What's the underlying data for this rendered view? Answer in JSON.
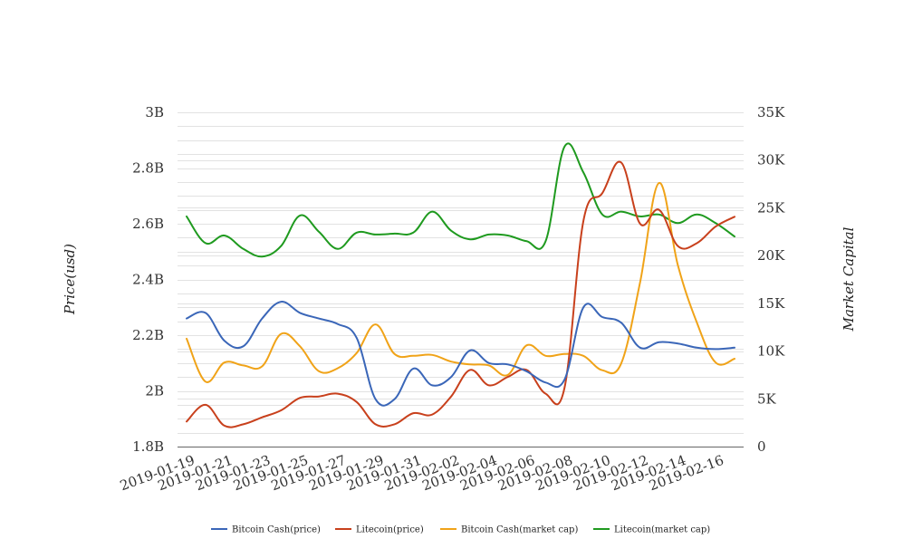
{
  "chart_data": {
    "type": "line",
    "title": "",
    "xlabel": "",
    "ylabel_left": "Price(usd)",
    "ylabel_right": "Market Capital",
    "x": [
      "2019-01-19",
      "2019-01-20",
      "2019-01-21",
      "2019-01-22",
      "2019-01-23",
      "2019-01-24",
      "2019-01-25",
      "2019-01-26",
      "2019-01-27",
      "2019-01-28",
      "2019-01-29",
      "2019-01-30",
      "2019-01-31",
      "2019-02-01",
      "2019-02-02",
      "2019-02-03",
      "2019-02-04",
      "2019-02-05",
      "2019-02-06",
      "2019-02-07",
      "2019-02-08",
      "2019-02-09",
      "2019-02-10",
      "2019-02-11",
      "2019-02-12",
      "2019-02-13",
      "2019-02-14",
      "2019-02-15",
      "2019-02-16",
      "2019-02-17"
    ],
    "x_tick_labels": [
      "2019-01-19",
      "2019-01-21",
      "2019-01-23",
      "2019-01-25",
      "2019-01-27",
      "2019-01-29",
      "2019-01-31",
      "2019-02-02",
      "2019-02-04",
      "2019-02-06",
      "2019-02-08",
      "2019-02-10",
      "2019-02-12",
      "2019-02-14",
      "2019-02-16"
    ],
    "y_left": {
      "ticks": [
        1.8,
        2.0,
        2.2,
        2.4,
        2.6,
        2.8,
        3.0
      ],
      "tick_labels": [
        "1.8B",
        "2B",
        "2.2B",
        "2.4B",
        "2.6B",
        "2.8B",
        "3B"
      ],
      "range": [
        1.8,
        3.0
      ],
      "unit": "billions"
    },
    "y_right": {
      "ticks": [
        0,
        5000,
        10000,
        15000,
        20000,
        25000,
        30000,
        35000
      ],
      "tick_labels": [
        "0",
        "5K",
        "10K",
        "15K",
        "20K",
        "25K",
        "30K",
        "35K"
      ],
      "range": [
        0,
        35000
      ]
    },
    "grid": true,
    "legend_position": "bottom",
    "series": [
      {
        "name": "Bitcoin Cash(price)",
        "axis": "left",
        "color": "#3a66b8",
        "values": [
          2.26,
          2.28,
          2.18,
          2.16,
          2.26,
          2.32,
          2.28,
          2.26,
          2.24,
          2.19,
          1.97,
          1.97,
          2.08,
          2.02,
          2.05,
          2.145,
          2.1,
          2.095,
          2.07,
          2.03,
          2.04,
          2.3,
          2.265,
          2.245,
          2.155,
          2.175,
          2.17,
          2.155,
          2.15,
          2.155
        ]
      },
      {
        "name": "Litecoin(price)",
        "axis": "left",
        "color": "#c8401c",
        "values": [
          1.89,
          1.95,
          1.875,
          1.88,
          1.905,
          1.93,
          1.975,
          1.98,
          1.99,
          1.96,
          1.88,
          1.88,
          1.92,
          1.915,
          1.98,
          2.075,
          2.02,
          2.05,
          2.075,
          1.99,
          2.01,
          2.61,
          2.71,
          2.82,
          2.6,
          2.65,
          2.52,
          2.53,
          2.59,
          2.625
        ]
      },
      {
        "name": "Bitcoin Cash(market cap)",
        "axis": "right",
        "color": "#f0a318",
        "values": [
          11300,
          6800,
          8800,
          8500,
          8400,
          11800,
          10500,
          7900,
          8200,
          9800,
          12800,
          9700,
          9500,
          9600,
          8900,
          8600,
          8500,
          7500,
          10600,
          9500,
          9700,
          9500,
          8000,
          8700,
          17200,
          27600,
          19000,
          13000,
          8800,
          9200
        ]
      },
      {
        "name": "Litecoin(market cap)",
        "axis": "right",
        "color": "#1f9a1f",
        "values": [
          24100,
          21300,
          22100,
          20700,
          19900,
          21000,
          24200,
          22500,
          20700,
          22400,
          22200,
          22300,
          22400,
          24600,
          22600,
          21700,
          22200,
          22100,
          21500,
          21500,
          31400,
          28700,
          24300,
          24600,
          24100,
          24300,
          23400,
          24300,
          23400,
          22000
        ]
      }
    ]
  }
}
